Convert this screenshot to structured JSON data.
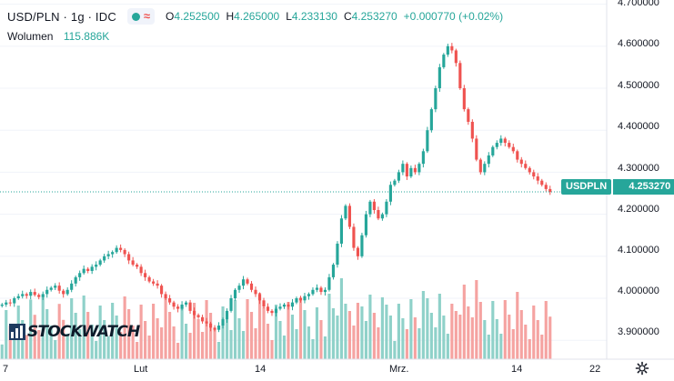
{
  "legend": {
    "title": "USD/PLN · 1g · IDC",
    "ohlc": [
      {
        "key": "O",
        "value": "4.252500"
      },
      {
        "key": "H",
        "value": "4.265000"
      },
      {
        "key": "L",
        "value": "4.233130"
      },
      {
        "key": "C",
        "value": "4.253270"
      }
    ],
    "change": "+0.000770 (+0.02%)",
    "volume_label": "Wolumen",
    "volume_value": "115.886K"
  },
  "price_tag": {
    "symbol": "USDPLN",
    "value": "4.253270"
  },
  "watermark": "STOCKWATCH",
  "colors": {
    "up": "#26a69a",
    "down": "#ef5350",
    "up_volume": "#8fd1c9",
    "down_volume": "#f5a3a1",
    "grid": "#f0f3fa"
  },
  "icons": {
    "visibility": "eye-icon",
    "source": "wave-icon",
    "settings": "gear-icon"
  },
  "chart_data": {
    "type": "candlestick",
    "title": "USD/PLN · 1g · IDC",
    "y_ticks": [
      "4.700000",
      "4.600000",
      "4.500000",
      "4.400000",
      "4.300000",
      "4.200000",
      "4.100000",
      "4.000000",
      "3.900000"
    ],
    "ylim": [
      3.855,
      4.71
    ],
    "x_ticks": [
      "7",
      "Lut",
      "14",
      "Mrz.",
      "14",
      "22"
    ],
    "last_close": 4.25327,
    "close_series": [
      3.985,
      3.99,
      3.988,
      4.0,
      4.005,
      4.01,
      4.006,
      4.015,
      4.008,
      4.003,
      4.01,
      4.02,
      4.025,
      4.03,
      4.018,
      4.01,
      4.02,
      4.035,
      4.05,
      4.06,
      4.07,
      4.065,
      4.075,
      4.08,
      4.09,
      4.1,
      4.105,
      4.11,
      4.12,
      4.115,
      4.105,
      4.09,
      4.08,
      4.075,
      4.06,
      4.05,
      4.04,
      4.035,
      4.03,
      4.01,
      4.0,
      3.99,
      3.98,
      3.975,
      3.985,
      3.99,
      3.97,
      3.96,
      3.955,
      3.945,
      3.94,
      3.93,
      3.925,
      3.935,
      3.95,
      3.97,
      4.0,
      4.02,
      4.03,
      4.045,
      4.035,
      4.02,
      4.01,
      3.995,
      3.98,
      3.97,
      3.965,
      3.975,
      3.98,
      3.985,
      3.98,
      3.99,
      4.0,
      3.995,
      4.005,
      4.01,
      4.02,
      4.025,
      4.015,
      4.02,
      4.05,
      4.08,
      4.13,
      4.19,
      4.22,
      4.17,
      4.12,
      4.1,
      4.15,
      4.2,
      4.23,
      4.21,
      4.19,
      4.2,
      4.23,
      4.27,
      4.28,
      4.3,
      4.32,
      4.29,
      4.31,
      4.3,
      4.32,
      4.35,
      4.4,
      4.45,
      4.5,
      4.55,
      4.58,
      4.6,
      4.59,
      4.56,
      4.5,
      4.45,
      4.42,
      4.38,
      4.33,
      4.3,
      4.32,
      4.34,
      4.36,
      4.37,
      4.38,
      4.37,
      4.36,
      4.35,
      4.33,
      4.32,
      4.31,
      4.3,
      4.29,
      4.28,
      4.27,
      4.26,
      4.253
    ]
  }
}
